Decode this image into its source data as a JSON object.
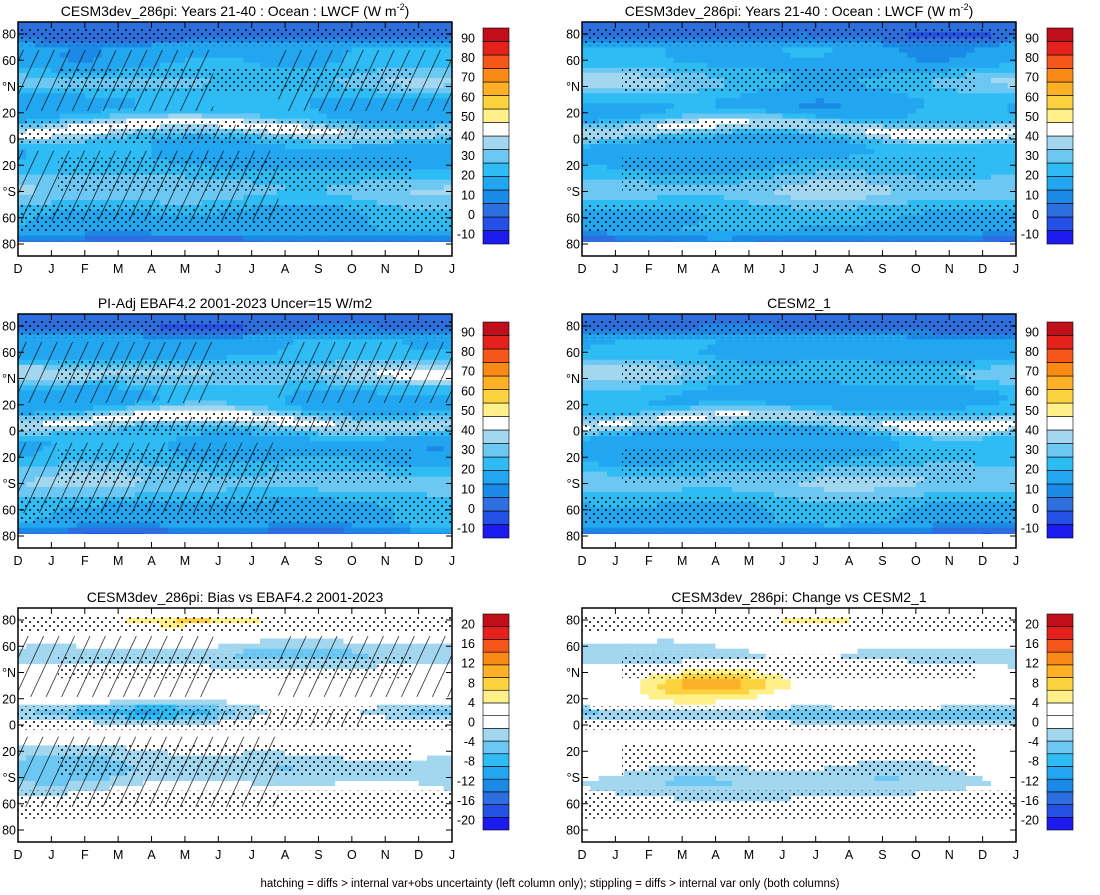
{
  "figure": {
    "footnote": "hatching = diffs > internal var+obs uncertainty (left column only); stippling = diffs > internal var only (both columns)"
  },
  "palette_abs": [
    "#1b1bf0",
    "#2450e6",
    "#2d6fde",
    "#1a8ae6",
    "#22a6f0",
    "#2fbcf5",
    "#6cc8f2",
    "#a3d6ef",
    "#ffffff",
    "#fff08a",
    "#fcd23e",
    "#fcb127",
    "#fa8a16",
    "#f5561a",
    "#e4211c",
    "#c00f1a"
  ],
  "palette_diff": [
    "#1b1bf0",
    "#2450e6",
    "#2d6fde",
    "#1a8ae6",
    "#22a6f0",
    "#2fbcf5",
    "#6cc8f2",
    "#a3d6ef",
    "#ffffff",
    "#ffffff",
    "#fff08a",
    "#fcd23e",
    "#fcb127",
    "#fa8a16",
    "#f5561a",
    "#e4211c",
    "#c00f1a"
  ],
  "chart_data": [
    {
      "id": "p1",
      "type": "heatmap",
      "title": "CESM3dev_286pi: Years 21-40 : Ocean : LWCF (W m",
      "title_sup": "-2",
      "title_end": ")",
      "x_ticks": [
        "D",
        "J",
        "F",
        "M",
        "A",
        "M",
        "J",
        "J",
        "A",
        "S",
        "O",
        "N",
        "D",
        "J"
      ],
      "y_ticks": [
        "80",
        "60",
        "°N",
        "20",
        "0",
        "20",
        "°S",
        "60",
        "80"
      ],
      "colorbar": [
        "90",
        "80",
        "70",
        "60",
        "50",
        "40",
        "30",
        "20",
        "10",
        "0",
        "-10"
      ],
      "scale": "abs",
      "hatching": true,
      "stippling": true
    },
    {
      "id": "p2",
      "type": "heatmap",
      "title": "CESM3dev_286pi: Years 21-40 : Ocean : LWCF (W m",
      "title_sup": "-2",
      "title_end": ")",
      "x_ticks": [
        "D",
        "J",
        "F",
        "M",
        "A",
        "M",
        "J",
        "J",
        "A",
        "S",
        "O",
        "N",
        "D",
        "J"
      ],
      "y_ticks": [
        "80",
        "60",
        "°N",
        "20",
        "0",
        "20",
        "°S",
        "60",
        "80"
      ],
      "colorbar": [
        "90",
        "80",
        "70",
        "60",
        "50",
        "40",
        "30",
        "20",
        "10",
        "0",
        "-10"
      ],
      "scale": "abs",
      "hatching": false,
      "stippling": true
    },
    {
      "id": "p3",
      "type": "heatmap",
      "title": "PI-Adj EBAF4.2 2001-2023 Uncer=15 W/m2",
      "title_sup": "",
      "title_end": "",
      "x_ticks": [
        "D",
        "J",
        "F",
        "M",
        "A",
        "M",
        "J",
        "J",
        "A",
        "S",
        "O",
        "N",
        "D",
        "J"
      ],
      "y_ticks": [
        "80",
        "60",
        "°N",
        "20",
        "0",
        "20",
        "°S",
        "60",
        "80"
      ],
      "colorbar": [
        "90",
        "80",
        "70",
        "60",
        "50",
        "40",
        "30",
        "20",
        "10",
        "0",
        "-10"
      ],
      "scale": "abs",
      "hatching": true,
      "stippling": true
    },
    {
      "id": "p4",
      "type": "heatmap",
      "title": "CESM2_1",
      "title_sup": "",
      "title_end": "",
      "x_ticks": [
        "D",
        "J",
        "F",
        "M",
        "A",
        "M",
        "J",
        "J",
        "A",
        "S",
        "O",
        "N",
        "D",
        "J"
      ],
      "y_ticks": [
        "80",
        "60",
        "°N",
        "20",
        "0",
        "20",
        "°S",
        "60",
        "80"
      ],
      "colorbar": [
        "90",
        "80",
        "70",
        "60",
        "50",
        "40",
        "30",
        "20",
        "10",
        "0",
        "-10"
      ],
      "scale": "abs",
      "hatching": false,
      "stippling": true
    },
    {
      "id": "p5",
      "type": "heatmap",
      "title": "CESM3dev_286pi: Bias vs EBAF4.2 2001-2023",
      "title_sup": "",
      "title_end": "",
      "x_ticks": [
        "D",
        "J",
        "F",
        "M",
        "A",
        "M",
        "J",
        "J",
        "A",
        "S",
        "O",
        "N",
        "D",
        "J"
      ],
      "y_ticks": [
        "80",
        "60",
        "°N",
        "20",
        "0",
        "20",
        "°S",
        "60",
        "80"
      ],
      "colorbar": [
        "20",
        "16",
        "12",
        "8",
        "4",
        "0",
        "-4",
        "-8",
        "-12",
        "-16",
        "-20"
      ],
      "scale": "diff",
      "hatching": true,
      "stippling": true
    },
    {
      "id": "p6",
      "type": "heatmap",
      "title": "CESM3dev_286pi: Change vs CESM2_1",
      "title_sup": "",
      "title_end": "",
      "x_ticks": [
        "D",
        "J",
        "F",
        "M",
        "A",
        "M",
        "J",
        "J",
        "A",
        "S",
        "O",
        "N",
        "D",
        "J"
      ],
      "y_ticks": [
        "80",
        "60",
        "°N",
        "20",
        "0",
        "20",
        "°S",
        "60",
        "80"
      ],
      "colorbar": [
        "20",
        "16",
        "12",
        "8",
        "4",
        "0",
        "-4",
        "-8",
        "-12",
        "-16",
        "-20"
      ],
      "scale": "diff",
      "hatching": false,
      "stippling": true
    }
  ]
}
